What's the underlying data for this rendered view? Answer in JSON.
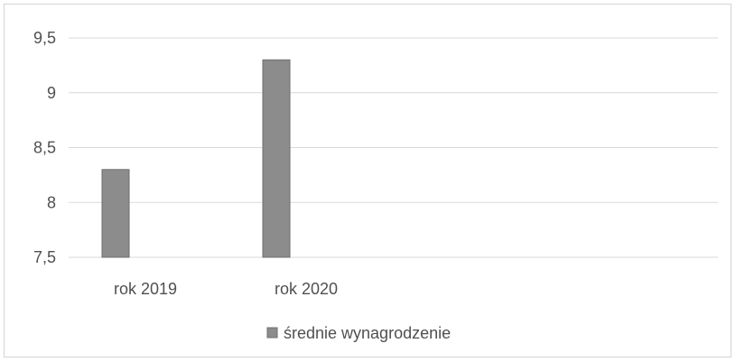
{
  "chart_data": {
    "type": "bar",
    "categories": [
      "rok 2019",
      "rok 2020"
    ],
    "series": [
      {
        "name": "średnie wynagrodzenie",
        "values": [
          8.3,
          9.3
        ],
        "color": "#8c8c8c"
      }
    ],
    "ylim": [
      7.5,
      9.5
    ],
    "yticks": [
      7.5,
      8,
      8.5,
      9,
      9.5
    ],
    "ytick_labels": [
      "7,5",
      "8",
      "8,5",
      "9",
      "9,5"
    ],
    "grid": true,
    "legend_position": "bottom",
    "colors": {
      "bar": "#8c8c8c",
      "bar_border": "#6e6e6e",
      "grid": "#d9d9d9",
      "text": "#505050"
    }
  }
}
